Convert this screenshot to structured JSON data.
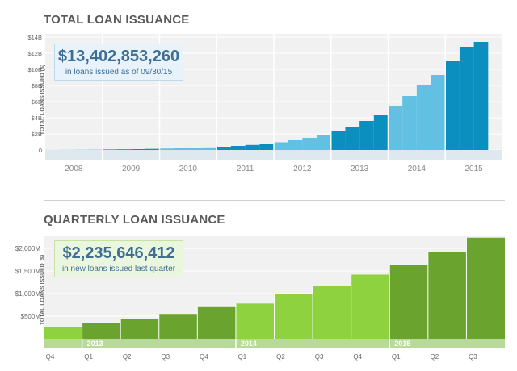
{
  "section1": {
    "title": "TOTAL LOAN ISSUANCE",
    "ylabel": "TOTAL LOANS ISSUED ($)"
  },
  "callout1": {
    "value": "$13,402,853,260",
    "text": "in loans issued as of 09/30/15"
  },
  "section2": {
    "title": "QUARTERLY LOAN ISSUANCE",
    "ylabel": "TOTAL LOANS ISSUED ($)"
  },
  "callout2": {
    "value": "$2,235,646,412",
    "text": "in new loans issued last quarter"
  },
  "colors": {
    "dark_blue": "#0a8fbf",
    "light_blue": "#62c0e2",
    "dark_green": "#6aa42e",
    "light_green": "#8fd23f",
    "year_band": "#b7d99a",
    "plot_bg": "#f1f1f1"
  },
  "chart_data": [
    {
      "type": "bar",
      "title": "TOTAL LOAN ISSUANCE",
      "ylabel": "TOTAL LOANS ISSUED ($)",
      "ylim": [
        0,
        14
      ],
      "yticks": [
        0,
        2,
        4,
        6,
        8,
        10,
        12,
        14
      ],
      "ytick_labels": [
        "0",
        "$2B",
        "$4B",
        "$6B",
        "$8B",
        "$10B",
        "$12B",
        "$14B"
      ],
      "categories": [
        "2008",
        "2009",
        "2010",
        "2011",
        "2012",
        "2013",
        "2014",
        "2015"
      ],
      "grid": true,
      "unit": "billions USD",
      "years": [
        {
          "year": "2008",
          "values": [
            0.01,
            0.02,
            0.03,
            0.04
          ],
          "light": true
        },
        {
          "year": "2009",
          "values": [
            0.06,
            0.08,
            0.1,
            0.13
          ],
          "light": false
        },
        {
          "year": "2010",
          "values": [
            0.17,
            0.21,
            0.26,
            0.32
          ],
          "light": true
        },
        {
          "year": "2011",
          "values": [
            0.4,
            0.5,
            0.62,
            0.76
          ],
          "light": false
        },
        {
          "year": "2012",
          "values": [
            0.95,
            1.2,
            1.5,
            1.85
          ],
          "light": true
        },
        {
          "year": "2013",
          "values": [
            2.3,
            2.9,
            3.6,
            4.3
          ],
          "light": false
        },
        {
          "year": "2014",
          "values": [
            5.4,
            6.7,
            8.0,
            9.3
          ],
          "light": true
        },
        {
          "year": "2015",
          "values": [
            11.0,
            12.8,
            13.4
          ],
          "light": false
        }
      ]
    },
    {
      "type": "bar",
      "title": "QUARTERLY LOAN ISSUANCE",
      "ylabel": "TOTAL LOANS ISSUED ($)",
      "ylim": [
        0,
        2250
      ],
      "yticks": [
        500,
        1000,
        1500,
        2000
      ],
      "ytick_labels": [
        "$500M",
        "$1,000M",
        "$1,500M",
        "$2,000M"
      ],
      "unit": "millions USD",
      "categories": [
        "Q4",
        "Q1",
        "Q2",
        "Q3",
        "Q4",
        "Q1",
        "Q2",
        "Q3",
        "Q4",
        "Q1",
        "Q2",
        "Q3"
      ],
      "values": [
        255,
        350,
        440,
        550,
        700,
        780,
        1000,
        1170,
        1420,
        1640,
        1920,
        2236
      ],
      "light": [
        true,
        false,
        false,
        false,
        false,
        true,
        true,
        true,
        true,
        false,
        false,
        false
      ],
      "year_labels": [
        {
          "label": "2013",
          "start": 1,
          "end": 4
        },
        {
          "label": "2014",
          "start": 5,
          "end": 8
        },
        {
          "label": "2015",
          "start": 9,
          "end": 11
        }
      ],
      "grid": true
    }
  ]
}
